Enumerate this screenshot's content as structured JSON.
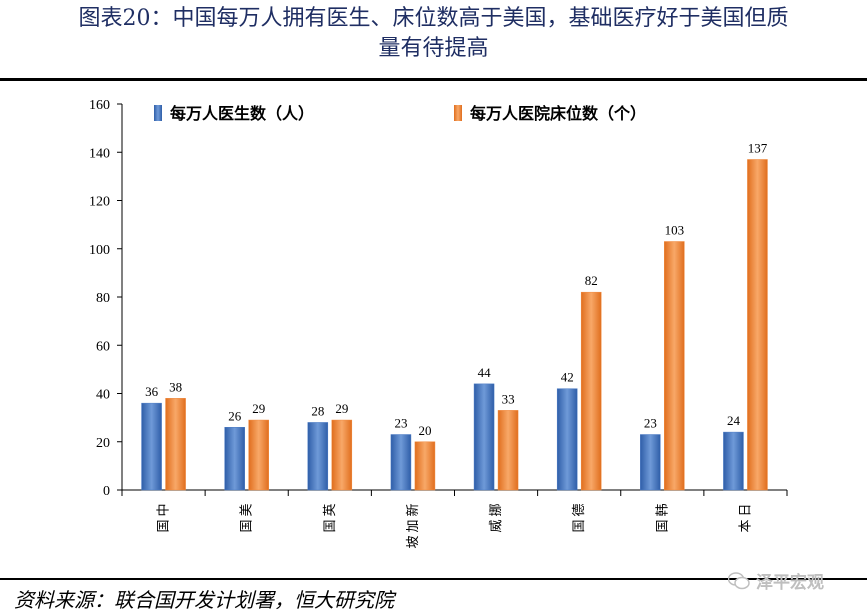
{
  "title_line1": "图表20：中国每万人拥有医生、床位数高于美国，基础医疗好于美国但质",
  "title_line2": "量有待提高",
  "source": "资料来源：联合国开发计划署，恒大研究院",
  "watermark": "泽平宏观",
  "colors": {
    "doctors": "#4a7ac4",
    "beds": "#f0883c",
    "title": "#1f2e63"
  },
  "chart_data": {
    "type": "bar",
    "categories": [
      "中国",
      "美国",
      "英国",
      "新加坡",
      "挪威",
      "德国",
      "韩国",
      "日本"
    ],
    "series": [
      {
        "name": "每万人医生数（人）",
        "values": [
          36,
          26,
          28,
          23,
          44,
          42,
          23,
          24
        ]
      },
      {
        "name": "每万人医院床位数（个）",
        "values": [
          38,
          29,
          29,
          20,
          33,
          82,
          103,
          137
        ]
      }
    ],
    "ylim": [
      0,
      160
    ],
    "yticks": [
      0,
      20,
      40,
      60,
      80,
      100,
      120,
      140,
      160
    ],
    "legend": "top",
    "grid": false
  }
}
